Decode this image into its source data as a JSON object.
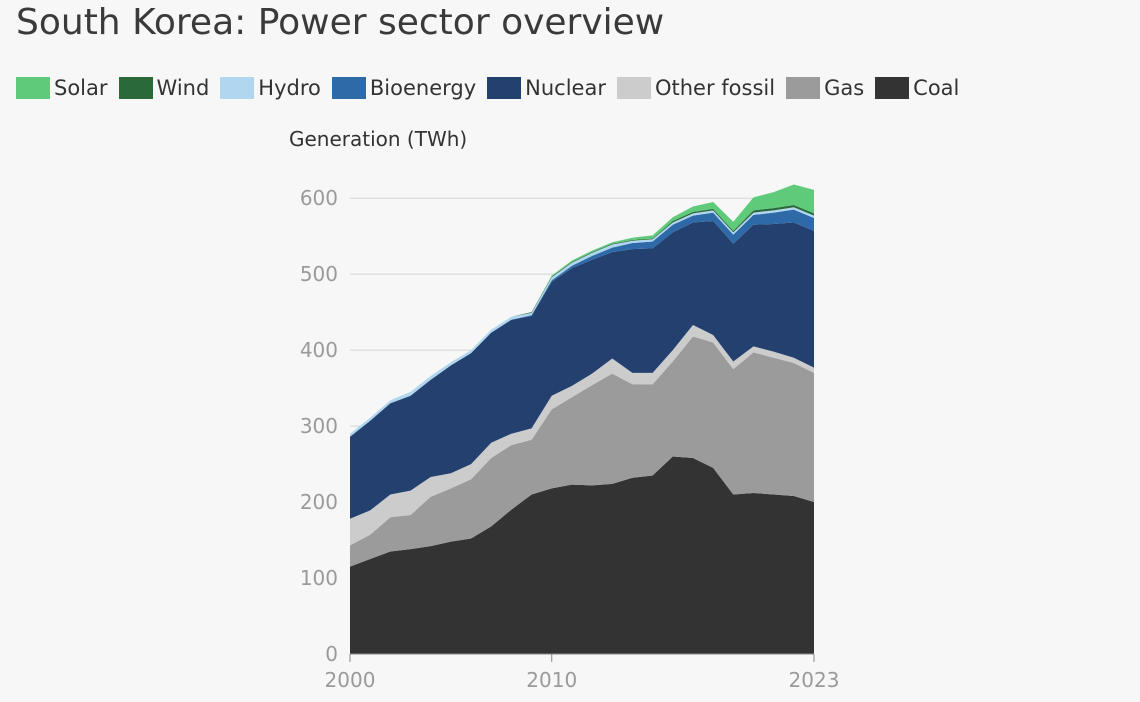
{
  "header": {
    "title": "South Korea: Power sector overview"
  },
  "chart_data": {
    "type": "area",
    "stacked": true,
    "title": "South Korea: Power sector overview",
    "ylabel": "Generation (TWh)",
    "xlabel": "",
    "x": [
      2000,
      2001,
      2002,
      2003,
      2004,
      2005,
      2006,
      2007,
      2008,
      2009,
      2010,
      2011,
      2012,
      2013,
      2014,
      2015,
      2016,
      2017,
      2018,
      2019,
      2020,
      2021,
      2022,
      2023
    ],
    "xticks": [
      "2000",
      "2010",
      "2023"
    ],
    "xtick_values": [
      2000,
      2010,
      2023
    ],
    "yticks": [
      "0",
      "100",
      "200",
      "300",
      "400",
      "500",
      "600"
    ],
    "ytick_values": [
      0,
      100,
      200,
      300,
      400,
      500,
      600
    ],
    "ylim": [
      0,
      620
    ],
    "xlim": [
      2000,
      2023
    ],
    "grid": true,
    "legend_position": "top",
    "series": [
      {
        "name": "Coal",
        "color": "#333333",
        "values": [
          115,
          125,
          135,
          138,
          142,
          148,
          152,
          168,
          190,
          210,
          218,
          223,
          222,
          224,
          232,
          235,
          260,
          258,
          245,
          210,
          212,
          210,
          208,
          200
        ]
      },
      {
        "name": "Gas",
        "color": "#9b9b9b",
        "values": [
          28,
          32,
          45,
          45,
          65,
          70,
          78,
          90,
          85,
          72,
          104,
          115,
          132,
          145,
          123,
          120,
          125,
          160,
          165,
          165,
          185,
          180,
          175,
          170
        ]
      },
      {
        "name": "Other fossil",
        "color": "#cccccc",
        "values": [
          35,
          32,
          30,
          32,
          26,
          20,
          20,
          20,
          15,
          15,
          18,
          15,
          15,
          20,
          15,
          15,
          15,
          15,
          10,
          10,
          8,
          8,
          7,
          7
        ]
      },
      {
        "name": "Nuclear",
        "color": "#23406f",
        "values": [
          108,
          118,
          120,
          125,
          128,
          142,
          146,
          145,
          150,
          148,
          150,
          155,
          150,
          140,
          163,
          164,
          155,
          135,
          150,
          155,
          160,
          168,
          178,
          180
        ]
      },
      {
        "name": "Bioenergy",
        "color": "#2e6aa8",
        "values": [
          0,
          0,
          0,
          0,
          0,
          0,
          0,
          0,
          0,
          1,
          2,
          3,
          5,
          6,
          8,
          9,
          10,
          9,
          11,
          12,
          13,
          15,
          17,
          17
        ]
      },
      {
        "name": "Hydro",
        "color": "#b0d6f0",
        "values": [
          4,
          4,
          4,
          5,
          5,
          4,
          4,
          4,
          4,
          3,
          4,
          4,
          4,
          4,
          3,
          3,
          3,
          3,
          3,
          3,
          3,
          3,
          3,
          3
        ]
      },
      {
        "name": "Wind",
        "color": "#2a6a3a",
        "values": [
          0,
          0,
          0,
          0,
          0,
          0,
          0,
          0,
          0,
          1,
          1,
          1,
          1,
          1,
          1,
          1,
          2,
          2,
          2,
          2,
          3,
          3,
          3,
          3
        ]
      },
      {
        "name": "Solar",
        "color": "#5fcb7a",
        "values": [
          0,
          0,
          0,
          0,
          0,
          0,
          0,
          0,
          0,
          0,
          1,
          2,
          2,
          2,
          3,
          4,
          5,
          7,
          9,
          12,
          17,
          21,
          27,
          31
        ]
      }
    ]
  },
  "legend": {
    "items": [
      {
        "label": "Solar",
        "color": "#5fcb7a"
      },
      {
        "label": "Wind",
        "color": "#2a6a3a"
      },
      {
        "label": "Hydro",
        "color": "#b0d6f0"
      },
      {
        "label": "Bioenergy",
        "color": "#2e6aa8"
      },
      {
        "label": "Nuclear",
        "color": "#23406f"
      },
      {
        "label": "Other fossil",
        "color": "#cccccc"
      },
      {
        "label": "Gas",
        "color": "#9b9b9b"
      },
      {
        "label": "Coal",
        "color": "#333333"
      }
    ]
  }
}
